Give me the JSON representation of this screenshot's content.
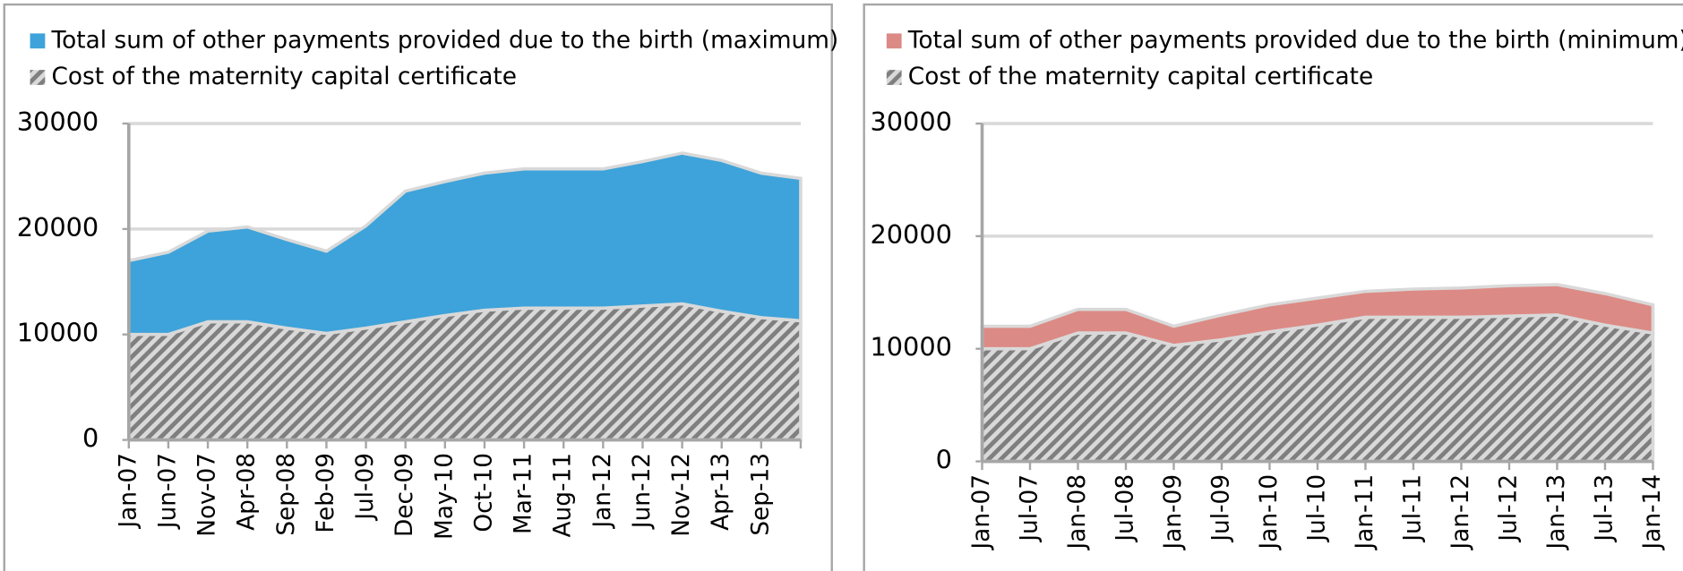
{
  "chart_data": [
    {
      "type": "area",
      "stacked": true,
      "grid": true,
      "categories": [
        "Jan-07",
        "Jun-07",
        "Nov-07",
        "Apr-08",
        "Sep-08",
        "Feb-09",
        "Jul-09",
        "Dec-09",
        "May-10",
        "Oct-10",
        "Mar-11",
        "Aug-11",
        "Jan-12",
        "Jun-12",
        "Nov-12",
        "Apr-13",
        "Sep-13",
        null
      ],
      "series": [
        {
          "name": "Total sum of other payments provided due to the birth (maximum)",
          "color": "#3ea3da",
          "values": [
            7000,
            7800,
            8600,
            9000,
            8400,
            7800,
            9700,
            12400,
            12700,
            13000,
            13200,
            13200,
            13200,
            13700,
            14300,
            14300,
            13700,
            13500
          ]
        },
        {
          "name": "Cost of the maternity capital certificate",
          "color": "#a6a6a6",
          "values": [
            10000,
            10000,
            11200,
            11200,
            10600,
            10100,
            10600,
            11200,
            11800,
            12300,
            12500,
            12500,
            12500,
            12700,
            12900,
            12200,
            11600,
            11300
          ]
        }
      ],
      "ylim": [
        0,
        30000
      ],
      "yticks": [
        0,
        10000,
        20000,
        30000
      ]
    },
    {
      "type": "area",
      "stacked": true,
      "grid": true,
      "categories": [
        "Jan-07",
        "Jul-07",
        "Jan-08",
        "Jul-08",
        "Jan-09",
        "Jul-09",
        "Jan-10",
        "Jul-10",
        "Jan-11",
        "Jul-11",
        "Jan-12",
        "Jul-12",
        "Jan-13",
        "Jul-13",
        "Jan-14"
      ],
      "series": [
        {
          "name": "Total sum of other payments provided due to the birth (minimum)",
          "color": "#dc8a85",
          "values": [
            2000,
            2000,
            2100,
            2100,
            1700,
            2200,
            2400,
            2400,
            2300,
            2500,
            2600,
            2700,
            2700,
            2800,
            2500
          ]
        },
        {
          "name": "Cost of the maternity capital certificate",
          "color": "#a6a6a6",
          "values": [
            10000,
            10000,
            11400,
            11400,
            10300,
            10800,
            11500,
            12100,
            12800,
            12800,
            12800,
            12900,
            13000,
            12100,
            11400
          ]
        }
      ],
      "ylim": [
        0,
        30000
      ],
      "yticks": [
        0,
        10000,
        20000,
        30000
      ]
    }
  ]
}
